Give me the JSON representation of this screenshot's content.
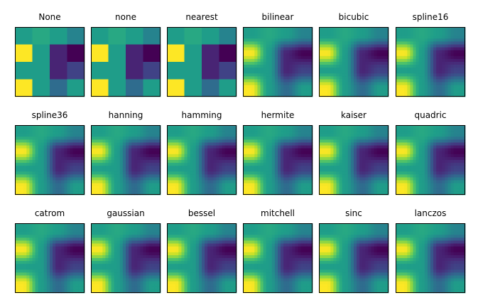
{
  "chart_data": {
    "type": "heatmap",
    "grid": false,
    "colormap": "viridis",
    "colormap_stops": [
      "#440154",
      "#482878",
      "#3e4989",
      "#31688e",
      "#26828e",
      "#1f9e89",
      "#35b779",
      "#6ece58",
      "#b5de2b",
      "#fde725"
    ],
    "value_range": [
      0,
      1
    ],
    "source_matrix": [
      [
        0.55,
        0.6,
        0.55,
        0.45
      ],
      [
        1.0,
        0.55,
        0.1,
        0.0
      ],
      [
        0.55,
        0.55,
        0.1,
        0.2
      ],
      [
        1.0,
        0.55,
        0.35,
        0.55
      ]
    ],
    "panels": [
      {
        "title": "None",
        "mode": "nearest"
      },
      {
        "title": "none",
        "mode": "nearest"
      },
      {
        "title": "nearest",
        "mode": "nearest"
      },
      {
        "title": "bilinear",
        "mode": "smooth"
      },
      {
        "title": "bicubic",
        "mode": "smooth"
      },
      {
        "title": "spline16",
        "mode": "smooth"
      },
      {
        "title": "spline36",
        "mode": "smooth"
      },
      {
        "title": "hanning",
        "mode": "smooth"
      },
      {
        "title": "hamming",
        "mode": "smooth"
      },
      {
        "title": "hermite",
        "mode": "smooth"
      },
      {
        "title": "kaiser",
        "mode": "smooth"
      },
      {
        "title": "quadric",
        "mode": "smooth"
      },
      {
        "title": "catrom",
        "mode": "smooth"
      },
      {
        "title": "gaussian",
        "mode": "smooth"
      },
      {
        "title": "bessel",
        "mode": "smooth"
      },
      {
        "title": "mitchell",
        "mode": "smooth"
      },
      {
        "title": "sinc",
        "mode": "smooth"
      },
      {
        "title": "lanczos",
        "mode": "smooth"
      }
    ]
  }
}
